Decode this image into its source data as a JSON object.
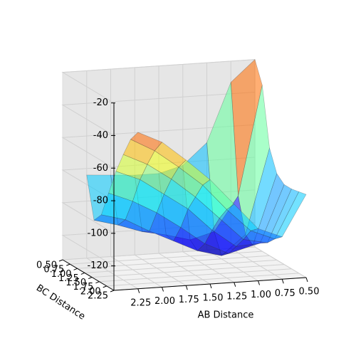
{
  "chart_data": {
    "type": "surface3d",
    "x_label": "AB Distance",
    "y_label": "BC Distance",
    "x": [
      0.5,
      0.75,
      1.0,
      1.25,
      1.5,
      1.75,
      2.0,
      2.25
    ],
    "y": [
      0.5,
      0.75,
      1.0,
      1.25,
      1.5,
      1.75,
      2.0,
      2.25
    ],
    "z": [
      [
        -20,
        -33,
        -69,
        -82,
        -86,
        -86,
        -85,
        -84
      ],
      [
        -33,
        -100,
        -121,
        -125,
        -121,
        -118,
        -113,
        -109
      ],
      [
        -69,
        -121,
        -133,
        -129,
        -122,
        -115,
        -107,
        -103
      ],
      [
        -82,
        -125,
        -129,
        -122,
        -111,
        -101,
        -93,
        -87
      ],
      [
        -86,
        -121,
        -122,
        -111,
        -97,
        -87,
        -77,
        -71
      ],
      [
        -86,
        -118,
        -115,
        -101,
        -87,
        -75,
        -65,
        -58
      ],
      [
        -85,
        -113,
        -107,
        -93,
        -77,
        -65,
        -54,
        -46
      ],
      [
        -84,
        -109,
        -103,
        -87,
        -71,
        -58,
        -46,
        -39
      ]
    ],
    "xlim": [
      0.5,
      2.5
    ],
    "ylim": [
      0.5,
      2.25
    ],
    "zlim": [
      -135,
      -20
    ],
    "xticks": [
      {
        "value": 0.5,
        "label": "0.50"
      },
      0.75,
      {
        "value": 1.0,
        "label": "1.00"
      },
      1.25,
      {
        "value": 1.5,
        "label": "1.50"
      },
      1.75,
      {
        "value": 2.0,
        "label": "2.00"
      },
      2.25
    ],
    "yticks": [
      {
        "value": 0.5,
        "label": "0.50"
      },
      0.75,
      {
        "value": 1.0,
        "label": "1.00"
      },
      1.25,
      {
        "value": 1.5,
        "label": "1.50"
      },
      1.75,
      {
        "value": 2.0,
        "label": "2.00"
      },
      2.25
    ],
    "zticks": [
      -120,
      -100,
      -80,
      -60,
      -40,
      -20
    ],
    "colormap": "jet"
  }
}
